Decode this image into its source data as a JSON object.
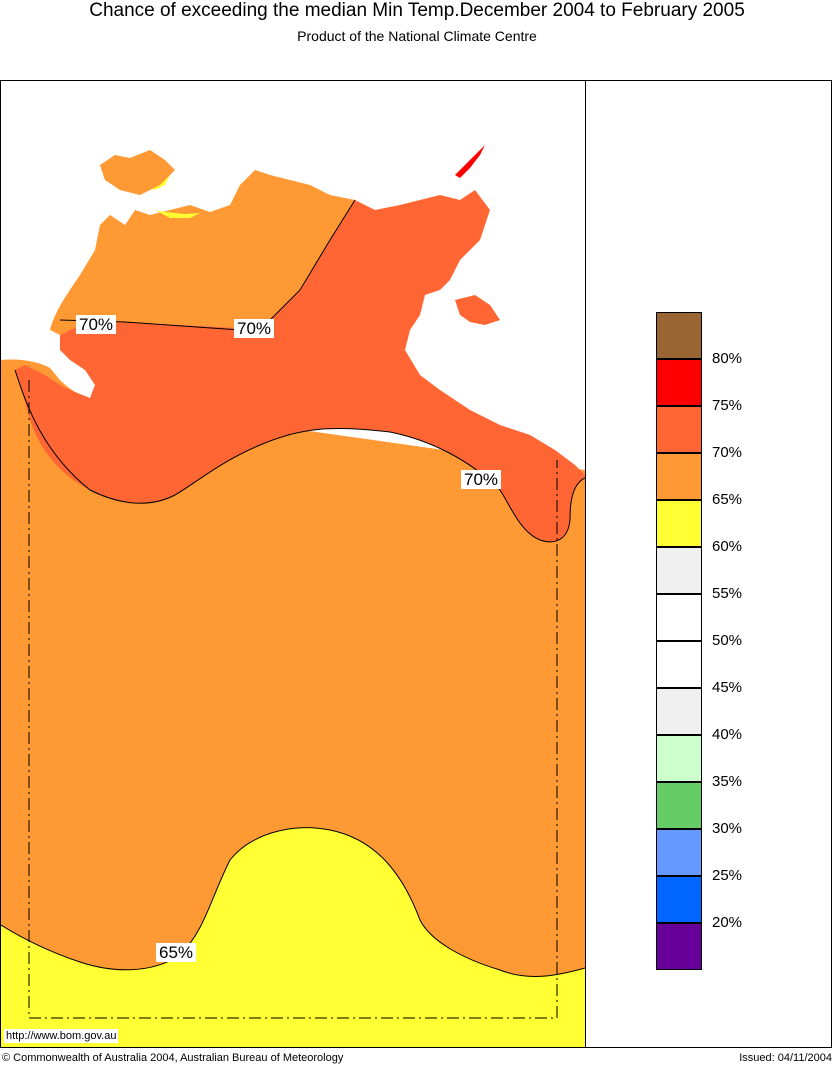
{
  "header": {
    "title": "Chance of exceeding the median Min Temp.December 2004 to February 2005",
    "subtitle": "Product of the National Climate Centre"
  },
  "map": {
    "url": "http://www.bom.gov.au",
    "contour_labels": [
      "70%",
      "70%",
      "70%",
      "65%"
    ],
    "colors": {
      "band_65_70": "#ff9933",
      "band_70_75": "#ff6633",
      "band_60_65": "#ffff33",
      "band_75_80": "#ff0000",
      "ocean": "#ffffff"
    }
  },
  "legend": {
    "items": [
      {
        "label": "80%",
        "color": "#996633"
      },
      {
        "label": "75%",
        "color": "#ff0000"
      },
      {
        "label": "70%",
        "color": "#ff6633"
      },
      {
        "label": "65%",
        "color": "#ff9933"
      },
      {
        "label": "60%",
        "color": "#ffff33"
      },
      {
        "label": "55%",
        "color": "#f0f0f0"
      },
      {
        "label": "50%",
        "color": "#ffffff"
      },
      {
        "label": "45%",
        "color": "#ffffff"
      },
      {
        "label": "40%",
        "color": "#f0f0f0"
      },
      {
        "label": "35%",
        "color": "#ccffcc"
      },
      {
        "label": "30%",
        "color": "#66cc66"
      },
      {
        "label": "25%",
        "color": "#6699ff"
      },
      {
        "label": "20%",
        "color": "#0066ff"
      },
      {
        "label": "",
        "color": "#660099"
      }
    ]
  },
  "footer": {
    "copyright": "© Commonwealth of Australia 2004, Australian Bureau of Meteorology",
    "issued": "Issued: 04/11/2004"
  }
}
